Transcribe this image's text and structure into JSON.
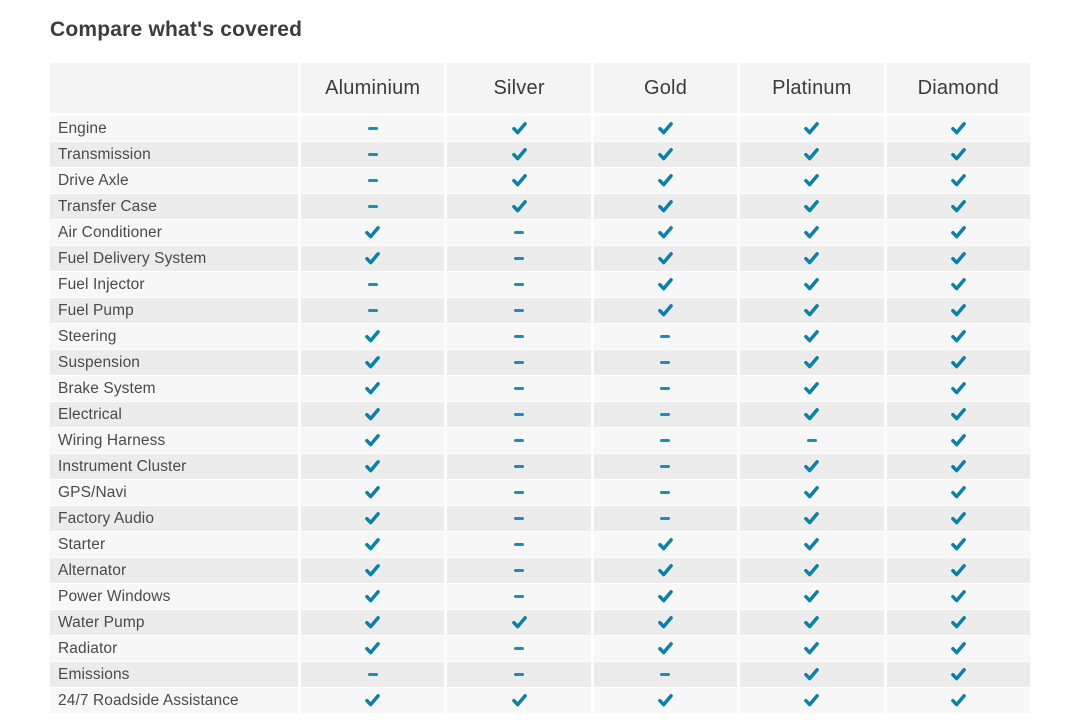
{
  "title": "Compare what's covered",
  "colors": {
    "check": "#0e80a6",
    "dash": "#1f8cb0"
  },
  "table": {
    "columns": [
      "Aluminium",
      "Silver",
      "Gold",
      "Platinum",
      "Diamond"
    ],
    "rows": [
      {
        "label": "Engine",
        "values": [
          "dash",
          "check",
          "check",
          "check",
          "check"
        ]
      },
      {
        "label": "Transmission",
        "values": [
          "dash",
          "check",
          "check",
          "check",
          "check"
        ]
      },
      {
        "label": "Drive Axle",
        "values": [
          "dash",
          "check",
          "check",
          "check",
          "check"
        ]
      },
      {
        "label": "Transfer Case",
        "values": [
          "dash",
          "check",
          "check",
          "check",
          "check"
        ]
      },
      {
        "label": "Air Conditioner",
        "values": [
          "check",
          "dash",
          "check",
          "check",
          "check"
        ]
      },
      {
        "label": "Fuel Delivery System",
        "values": [
          "check",
          "dash",
          "check",
          "check",
          "check"
        ]
      },
      {
        "label": "Fuel Injector",
        "values": [
          "dash",
          "dash",
          "check",
          "check",
          "check"
        ]
      },
      {
        "label": "Fuel Pump",
        "values": [
          "dash",
          "dash",
          "check",
          "check",
          "check"
        ]
      },
      {
        "label": "Steering",
        "values": [
          "check",
          "dash",
          "dash",
          "check",
          "check"
        ]
      },
      {
        "label": "Suspension",
        "values": [
          "check",
          "dash",
          "dash",
          "check",
          "check"
        ]
      },
      {
        "label": "Brake System",
        "values": [
          "check",
          "dash",
          "dash",
          "check",
          "check"
        ]
      },
      {
        "label": "Electrical",
        "values": [
          "check",
          "dash",
          "dash",
          "check",
          "check"
        ]
      },
      {
        "label": "Wiring Harness",
        "values": [
          "check",
          "dash",
          "dash",
          "dash",
          "check"
        ]
      },
      {
        "label": "Instrument Cluster",
        "values": [
          "check",
          "dash",
          "dash",
          "check",
          "check"
        ]
      },
      {
        "label": "GPS/Navi",
        "values": [
          "check",
          "dash",
          "dash",
          "check",
          "check"
        ]
      },
      {
        "label": "Factory Audio",
        "values": [
          "check",
          "dash",
          "dash",
          "check",
          "check"
        ]
      },
      {
        "label": "Starter",
        "values": [
          "check",
          "dash",
          "check",
          "check",
          "check"
        ]
      },
      {
        "label": "Alternator",
        "values": [
          "check",
          "dash",
          "check",
          "check",
          "check"
        ]
      },
      {
        "label": "Power Windows",
        "values": [
          "check",
          "dash",
          "check",
          "check",
          "check"
        ]
      },
      {
        "label": "Water Pump",
        "values": [
          "check",
          "check",
          "check",
          "check",
          "check"
        ]
      },
      {
        "label": "Radiator",
        "values": [
          "check",
          "dash",
          "check",
          "check",
          "check"
        ]
      },
      {
        "label": "Emissions",
        "values": [
          "dash",
          "dash",
          "dash",
          "check",
          "check"
        ]
      },
      {
        "label": "24/7 Roadside Assistance",
        "values": [
          "check",
          "check",
          "check",
          "check",
          "check"
        ]
      }
    ]
  }
}
